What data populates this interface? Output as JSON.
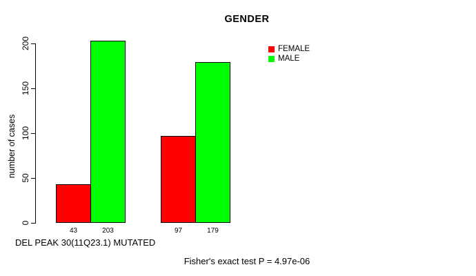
{
  "chart_data": {
    "type": "bar",
    "title": "GENDER",
    "ylabel": "number of cases",
    "xlabel": "DEL PEAK 30(11Q23.1) MUTATED",
    "annotation": "Fisher's exact test P = 4.97e-06",
    "series": [
      {
        "name": "FEMALE",
        "color": "#ff0000",
        "values": [
          43,
          97
        ]
      },
      {
        "name": "MALE",
        "color": "#00ff00",
        "values": [
          203,
          179
        ]
      }
    ],
    "value_labels_shown": true,
    "bar_value_labels": [
      [
        "43",
        "203"
      ],
      [
        "97",
        "179"
      ]
    ],
    "yticks": [
      "0",
      "50",
      "100",
      "150",
      "200"
    ],
    "ylim": [
      0,
      200
    ],
    "grid": false,
    "legend_position": "top-right",
    "bar_border_color": "#000000",
    "axis_color": "#000000",
    "background_color": "#ffffff"
  }
}
